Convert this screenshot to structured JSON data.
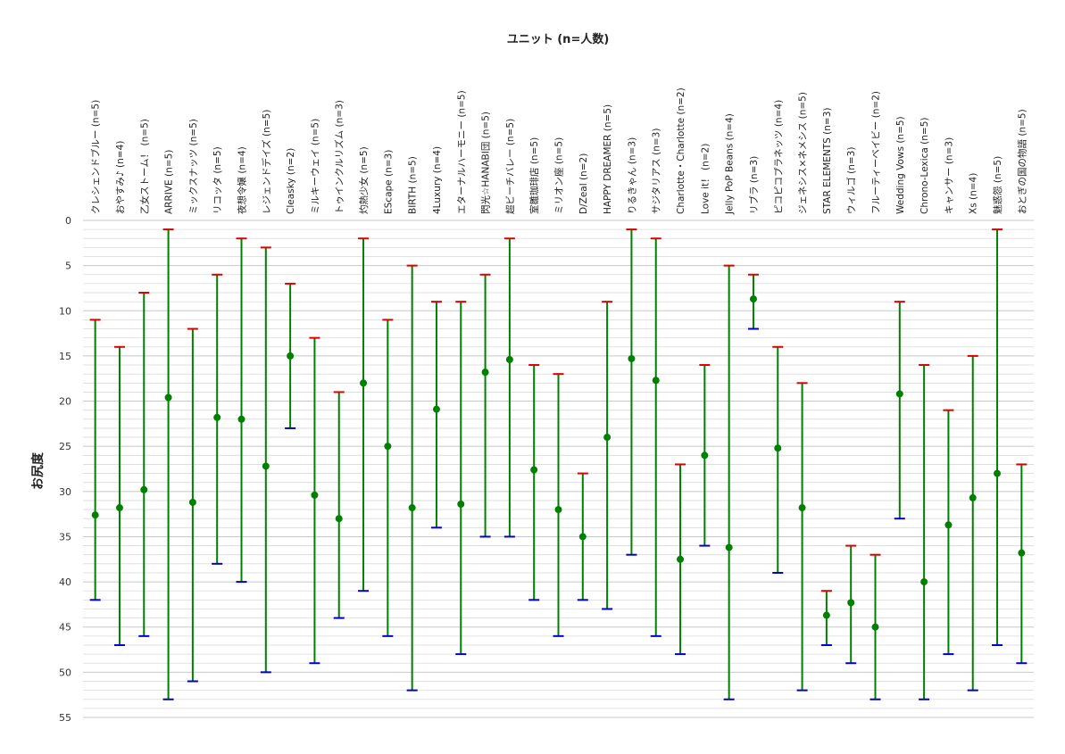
{
  "chart_data": {
    "type": "errorbar",
    "title": "ユニット (n=人数)",
    "ylabel": "お尻度",
    "xlabel": "",
    "ylim": [
      0,
      55
    ],
    "y_inverted": true,
    "yticks": [
      0,
      5,
      10,
      15,
      20,
      25,
      30,
      35,
      40,
      45,
      50,
      55
    ],
    "grid": true,
    "x_axis_position": "top",
    "colors": {
      "bar": "#008000",
      "mean": "#008000",
      "min_cap": "#dd0000",
      "max_cap": "#0000cc",
      "grid": "#d9d9d9"
    },
    "units": [
      {
        "label": "クレシェンドブルー (n=5)",
        "min": 11,
        "mean": 32.6,
        "max": 42
      },
      {
        "label": "おやすみ♪ (n=4)",
        "min": 14,
        "mean": 31.8,
        "max": 47
      },
      {
        "label": "乙女ストーム！ (n=5)",
        "min": 8,
        "mean": 29.8,
        "max": 46
      },
      {
        "label": "ARRIVE (n=5)",
        "min": 1,
        "mean": 19.6,
        "max": 53
      },
      {
        "label": "ミックスナッツ (n=5)",
        "min": 12,
        "mean": 31.2,
        "max": 51
      },
      {
        "label": "リコッタ (n=5)",
        "min": 6,
        "mean": 21.8,
        "max": 38
      },
      {
        "label": "夜想令嬢 (n=4)",
        "min": 2,
        "mean": 22,
        "max": 40
      },
      {
        "label": "レジェンドデイズ (n=5)",
        "min": 3,
        "mean": 27.2,
        "max": 50
      },
      {
        "label": "Cleasky (n=2)",
        "min": 7,
        "mean": 15,
        "max": 23
      },
      {
        "label": "ミルキーウェイ (n=5)",
        "min": 13,
        "mean": 30.4,
        "max": 49
      },
      {
        "label": "トゥインクルリズム (n=3)",
        "min": 19,
        "mean": 33,
        "max": 44
      },
      {
        "label": "灼熱少女 (n=5)",
        "min": 2,
        "mean": 18,
        "max": 41
      },
      {
        "label": "EScape (n=3)",
        "min": 11,
        "mean": 25,
        "max": 46
      },
      {
        "label": "BIRTH (n=5)",
        "min": 5,
        "mean": 31.8,
        "max": 52
      },
      {
        "label": "4Luxury (n=4)",
        "min": 9,
        "mean": 20.9,
        "max": 34
      },
      {
        "label": "エターナルハーモニー (n=5)",
        "min": 9,
        "mean": 31.4,
        "max": 48
      },
      {
        "label": "閃光☆HANABI団 (n=5)",
        "min": 6,
        "mean": 16.8,
        "max": 35
      },
      {
        "label": "超ビーチバレー (n=5)",
        "min": 2,
        "mean": 15.4,
        "max": 35
      },
      {
        "label": "室雛珈琲店 (n=5)",
        "min": 16,
        "mean": 27.6,
        "max": 42
      },
      {
        "label": "ミリオン座 (n=5)",
        "min": 17,
        "mean": 32,
        "max": 46
      },
      {
        "label": "D/Zeal (n=2)",
        "min": 28,
        "mean": 35,
        "max": 42
      },
      {
        "label": "HAPPY DREAMER (n=5)",
        "min": 9,
        "mean": 24,
        "max": 43
      },
      {
        "label": "りるきゃん (n=3)",
        "min": 1,
        "mean": 15.3,
        "max": 37
      },
      {
        "label": "サジタリアス (n=3)",
        "min": 2,
        "mean": 17.7,
        "max": 46
      },
      {
        "label": "Charlotte・Charlotte (n=2)",
        "min": 27,
        "mean": 37.5,
        "max": 48
      },
      {
        "label": "Love it！ (n=2)",
        "min": 16,
        "mean": 26,
        "max": 36
      },
      {
        "label": "Jelly PoP Beans (n=4)",
        "min": 5,
        "mean": 36.2,
        "max": 53
      },
      {
        "label": "リブラ (n=3)",
        "min": 6,
        "mean": 8.7,
        "max": 12
      },
      {
        "label": "ピコピコプラネッツ (n=4)",
        "min": 14,
        "mean": 25.2,
        "max": 39
      },
      {
        "label": "ジェネシス×ネメシス (n=5)",
        "min": 18,
        "mean": 31.8,
        "max": 52
      },
      {
        "label": "STAR ELEMENTS (n=3)",
        "min": 41,
        "mean": 43.7,
        "max": 47
      },
      {
        "label": "ウィルゴ (n=3)",
        "min": 36,
        "mean": 42.3,
        "max": 49
      },
      {
        "label": "フルーティーベイビー (n=2)",
        "min": 37,
        "mean": 45,
        "max": 53
      },
      {
        "label": "Wedding Vows (n=5)",
        "min": 9,
        "mean": 19.2,
        "max": 33
      },
      {
        "label": "Chrono-Lexica (n=5)",
        "min": 16,
        "mean": 40,
        "max": 53
      },
      {
        "label": "キャンサー (n=3)",
        "min": 21,
        "mean": 33.7,
        "max": 48
      },
      {
        "label": "Xs (n=4)",
        "min": 15,
        "mean": 30.7,
        "max": 52
      },
      {
        "label": "魅惑怨 (n=5)",
        "min": 1,
        "mean": 28,
        "max": 47
      },
      {
        "label": "おとぎの国の物語 (n=5)",
        "min": 27,
        "mean": 36.8,
        "max": 49
      }
    ]
  }
}
